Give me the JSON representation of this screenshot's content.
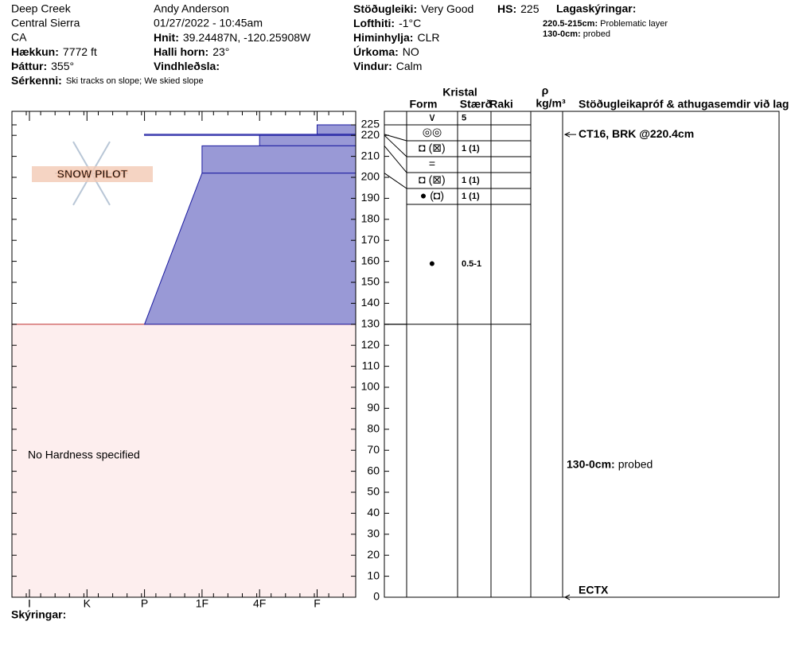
{
  "location": {
    "name": "Deep Creek",
    "range": "Central Sierra",
    "state": "CA"
  },
  "observer": "Andy Anderson",
  "datetime": "01/27/2022 - 10:45am",
  "fields": [
    {
      "label": "Hækkun:",
      "value": "7772 ft"
    },
    {
      "label": "Þáttur:",
      "value": "355°"
    },
    {
      "label": "Sérkenni:",
      "value": "Ski tracks on slope; We skied slope"
    },
    {
      "label": "Hnit:",
      "value": "39.24487N, -120.25908W"
    },
    {
      "label": "Halli horn:",
      "value": "23°"
    },
    {
      "label": "Vindhleðsla:"
    },
    {
      "label": "Stöðugleiki:",
      "value": "Very Good"
    },
    {
      "label": "HS:",
      "value": "225"
    },
    {
      "label": "Lofthiti:",
      "value": "-1°C"
    },
    {
      "label": "Himinhylja:",
      "value": "CLR"
    },
    {
      "label": "Úrkoma:",
      "value": "NO"
    },
    {
      "label": "Vindur:",
      "value": "Calm"
    }
  ],
  "legend": {
    "title": "Lagaskýringar:",
    "items": [
      {
        "label": "220.5-215cm:",
        "value": "Problematic layer"
      },
      {
        "label": "130-0cm:",
        "value": "probed"
      }
    ]
  },
  "logo": "SNOW PILOT",
  "profile": {
    "height_range": [
      0,
      225
    ],
    "height_ticks": [
      0,
      10,
      20,
      30,
      40,
      50,
      60,
      70,
      80,
      90,
      100,
      110,
      120,
      130,
      140,
      150,
      160,
      170,
      180,
      190,
      200,
      210,
      220,
      225
    ],
    "hardness_axis": [
      "I",
      "K",
      "P",
      "1F",
      "4F",
      "F"
    ],
    "layers": [
      {
        "top": 225,
        "bottom": 220.5,
        "hardness": [
          "F",
          "F"
        ]
      },
      {
        "top": 220.5,
        "bottom": 220,
        "hardness": [
          "P",
          "P"
        ]
      },
      {
        "top": 220,
        "bottom": 215,
        "hardness": [
          "4F",
          "4F"
        ]
      },
      {
        "top": 215,
        "bottom": 202,
        "hardness": [
          "1F",
          "1F"
        ]
      },
      {
        "top": 202,
        "bottom": 130,
        "hardness": [
          "1F",
          "P"
        ]
      }
    ],
    "no_hardness": {
      "top": 130,
      "bottom": 0,
      "label": "No Hardness specified"
    },
    "columns": {
      "crystal": "Kristal",
      "form": "Form",
      "size": "Stærð",
      "moisture": "Raki",
      "density_symbol": "ρ",
      "density_unit": "kg/m³",
      "tests": "Stöðugleikapróf & athugasemdir við lag"
    },
    "grains": [
      {
        "form": "∨",
        "size": "5"
      },
      {
        "form": "◎◎"
      },
      {
        "form": "◘ (⊠)",
        "size": "1 (1)"
      },
      {
        "form": "="
      },
      {
        "form": "◘ (⊠)",
        "size": "1 (1)"
      },
      {
        "form": "● (◘)",
        "size": "1 (1)"
      },
      {
        "form": "●",
        "size": "0.5-1"
      }
    ],
    "tests": [
      {
        "height": 220.4,
        "label": "CT16, BRK @220.4cm"
      },
      {
        "height": 0,
        "label": "ECTX"
      }
    ],
    "comment": {
      "label": "130-0cm:",
      "value": "probed",
      "top": 130,
      "bottom": 0
    }
  },
  "footer": "Skýringar:"
}
